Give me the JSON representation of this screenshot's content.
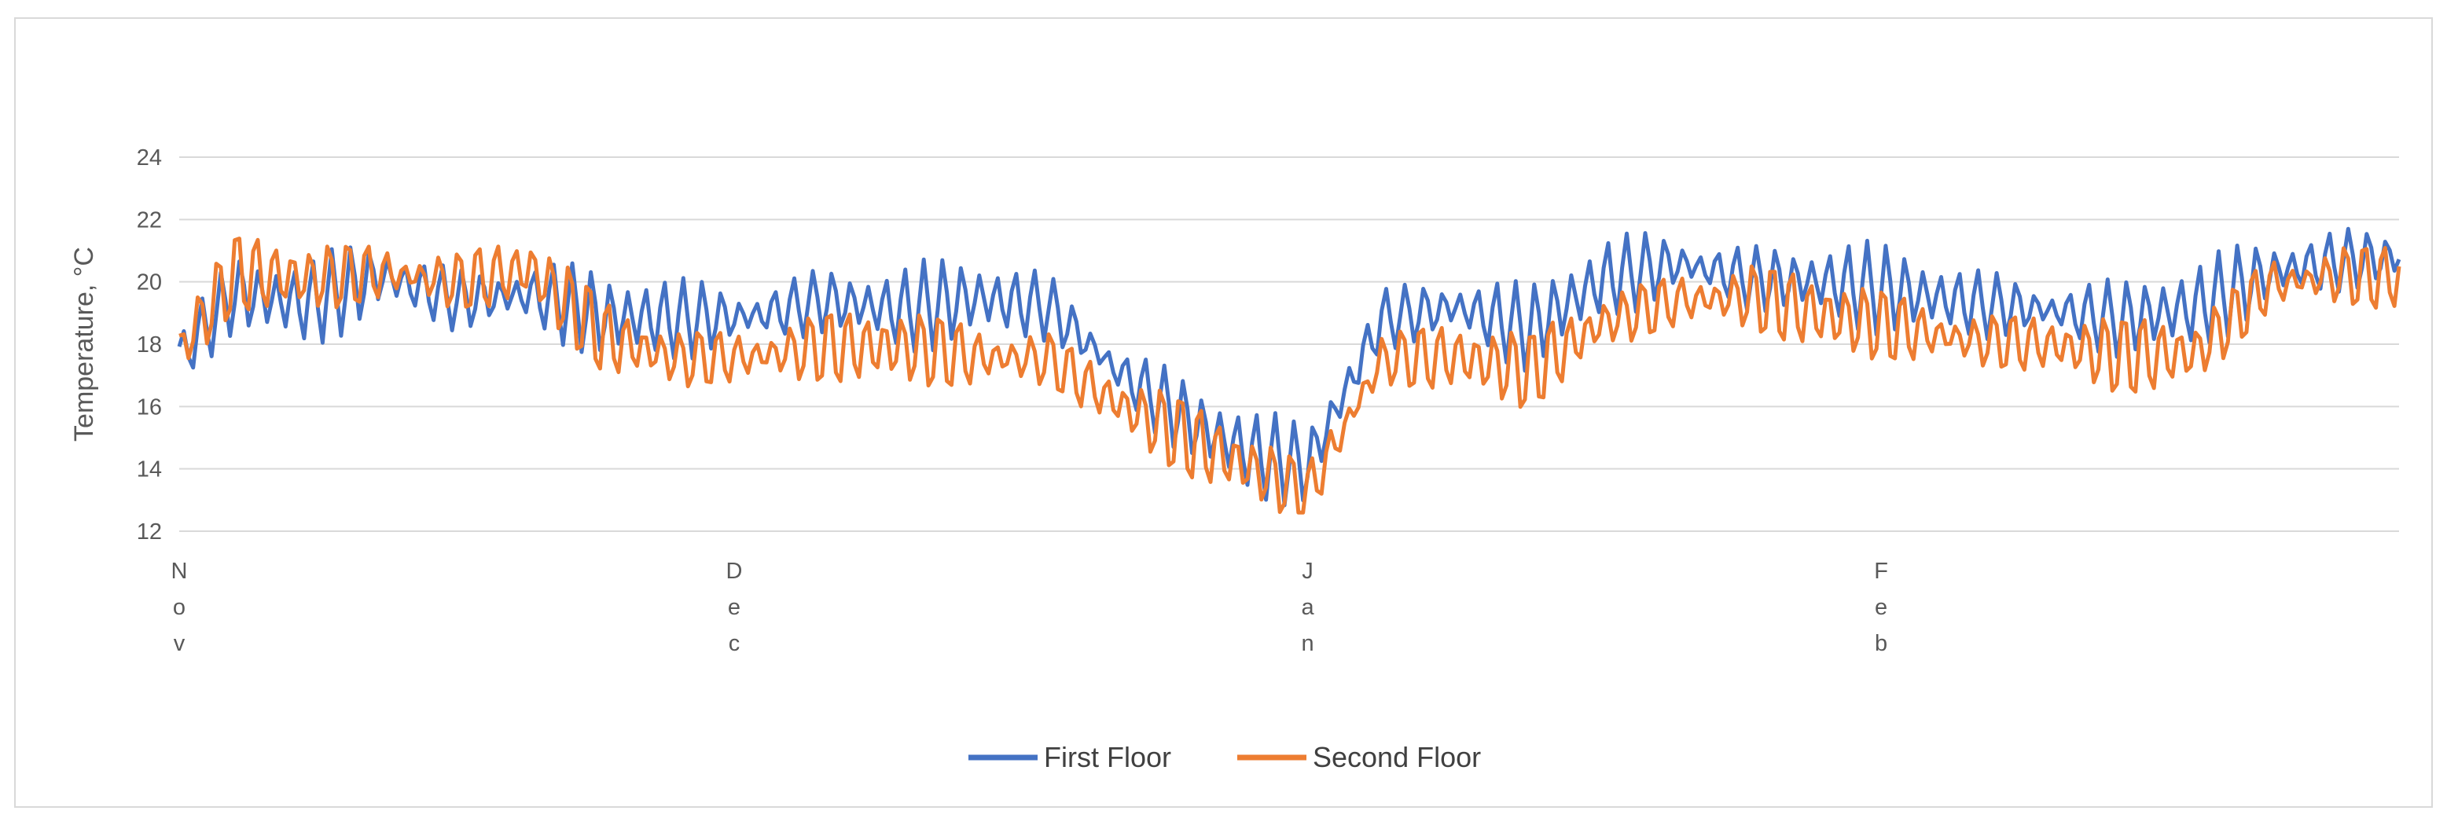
{
  "chart_data": {
    "type": "line",
    "title": "",
    "ylabel": "Temperature, °C",
    "xlabel": "",
    "ylim": [
      12,
      24
    ],
    "yticks": [
      12,
      14,
      16,
      18,
      20,
      22,
      24
    ],
    "grid": "horizontal",
    "legend_position": "bottom",
    "x_start": "2023-11-01",
    "x_end": "2024-02-29",
    "x_ticks": [
      {
        "date": "2023-11-01",
        "label": "Nov"
      },
      {
        "date": "2023-12-01",
        "label": "Dec"
      },
      {
        "date": "2024-01-01",
        "label": "Jan"
      },
      {
        "date": "2024-02-01",
        "label": "Feb"
      }
    ],
    "series": [
      {
        "name": "First Floor",
        "color": "#4472c4",
        "x": [
          "2023-11-01",
          "2023-11-04",
          "2023-11-08",
          "2023-11-12",
          "2023-11-16",
          "2023-11-20",
          "2023-11-24",
          "2023-11-28",
          "2023-12-02",
          "2023-12-06",
          "2023-12-10",
          "2023-12-14",
          "2023-12-18",
          "2023-12-22",
          "2023-12-26",
          "2023-12-29",
          "2024-01-01",
          "2024-01-05",
          "2024-01-09",
          "2024-01-13",
          "2024-01-17",
          "2024-01-21",
          "2024-01-25",
          "2024-01-29",
          "2024-02-02",
          "2024-02-06",
          "2024-02-10",
          "2024-02-14",
          "2024-02-18",
          "2024-02-22",
          "2024-02-26",
          "2024-02-29"
        ],
        "y": [
          17.6,
          19.6,
          19.3,
          20.2,
          19.4,
          19.6,
          18.9,
          18.8,
          18.9,
          19.4,
          19.1,
          19.5,
          19.2,
          17.0,
          15.4,
          14.5,
          14.1,
          18.8,
          19.2,
          18.5,
          20.1,
          20.6,
          20.1,
          20.0,
          19.7,
          19.3,
          19.1,
          18.8,
          19.2,
          20.3,
          20.7,
          20.8
        ]
      },
      {
        "name": "Second Floor",
        "color": "#ed7d31",
        "x": [
          "2023-11-01",
          "2023-11-04",
          "2023-11-08",
          "2023-11-12",
          "2023-11-16",
          "2023-11-20",
          "2023-11-24",
          "2023-11-28",
          "2023-12-02",
          "2023-12-06",
          "2023-12-10",
          "2023-12-14",
          "2023-12-18",
          "2023-12-22",
          "2023-12-26",
          "2023-12-29",
          "2024-01-01",
          "2024-01-05",
          "2024-01-09",
          "2024-01-13",
          "2024-01-17",
          "2024-01-21",
          "2024-01-25",
          "2024-01-29",
          "2024-02-02",
          "2024-02-06",
          "2024-02-10",
          "2024-02-14",
          "2024-02-18",
          "2024-02-22",
          "2024-02-26",
          "2024-02-29"
        ],
        "y": [
          17.8,
          20.3,
          20.1,
          20.3,
          20.0,
          20.4,
          18.2,
          17.5,
          17.6,
          17.9,
          17.9,
          17.6,
          17.5,
          16.0,
          14.8,
          14.0,
          13.2,
          17.5,
          17.6,
          17.1,
          18.7,
          19.4,
          19.5,
          18.9,
          18.5,
          18.1,
          18.0,
          17.6,
          17.7,
          19.9,
          20.2,
          20.1
        ]
      }
    ]
  }
}
